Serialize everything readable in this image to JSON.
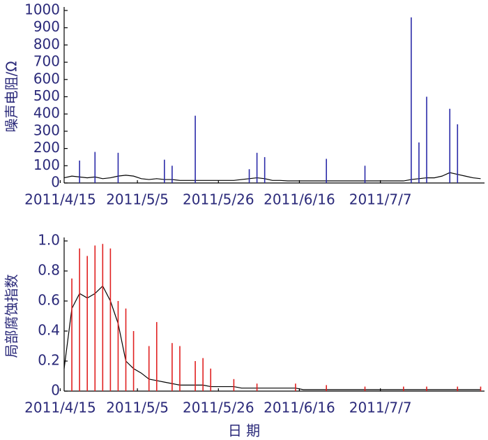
{
  "chart_data": [
    {
      "type": "line",
      "ylabel": "噪声电阻/Ω",
      "x": [
        "2011/4/16",
        "2011/4/18",
        "2011/4/20",
        "2011/4/22",
        "2011/4/24",
        "2011/4/26",
        "2011/4/28",
        "2011/4/30",
        "2011/5/2",
        "2011/5/4",
        "2011/5/6",
        "2011/5/8",
        "2011/5/10",
        "2011/5/12",
        "2011/5/14",
        "2011/5/16",
        "2011/5/18",
        "2011/5/20",
        "2011/5/22",
        "2011/5/24",
        "2011/5/26",
        "2011/5/28",
        "2011/5/30",
        "2011/6/1",
        "2011/6/3",
        "2011/6/5",
        "2011/6/7",
        "2011/6/9",
        "2011/6/11",
        "2011/6/13",
        "2011/6/15",
        "2011/6/17",
        "2011/6/19",
        "2011/6/21",
        "2011/6/23",
        "2011/6/25",
        "2011/6/27",
        "2011/6/29",
        "2011/7/1",
        "2011/7/3",
        "2011/7/5",
        "2011/7/7",
        "2011/7/9",
        "2011/7/11",
        "2011/7/13",
        "2011/7/15",
        "2011/7/17",
        "2011/7/19",
        "2011/7/21",
        "2011/7/23",
        "2011/7/25",
        "2011/7/27",
        "2011/7/29",
        "2011/7/31",
        "2011/8/2"
      ],
      "series": [
        {
          "color": "#000000",
          "style": "line",
          "values": [
            30,
            40,
            35,
            30,
            35,
            25,
            30,
            40,
            45,
            40,
            25,
            20,
            25,
            20,
            20,
            15,
            15,
            15,
            15,
            15,
            15,
            15,
            15,
            20,
            25,
            30,
            25,
            15,
            15,
            12,
            12,
            12,
            12,
            12,
            12,
            12,
            12,
            12,
            12,
            12,
            12,
            12,
            12,
            12,
            12,
            20,
            25,
            30,
            30,
            40,
            60,
            50,
            40,
            30,
            25
          ]
        },
        {
          "color": "#2a2aa8",
          "style": "stem",
          "values": [
            null,
            null,
            130,
            null,
            180,
            null,
            null,
            175,
            null,
            null,
            null,
            null,
            null,
            135,
            100,
            null,
            null,
            390,
            null,
            null,
            null,
            null,
            null,
            null,
            80,
            175,
            150,
            null,
            null,
            null,
            null,
            null,
            null,
            null,
            140,
            null,
            null,
            null,
            null,
            100,
            null,
            null,
            null,
            null,
            null,
            960,
            235,
            500,
            null,
            null,
            430,
            340,
            null,
            null,
            null
          ]
        }
      ],
      "xlim": [
        "2011/4/16",
        "2011/8/3"
      ],
      "xticks": [
        "2011/4/15",
        "2011/5/5",
        "2011/5/26",
        "2011/6/16",
        "2011/7/7"
      ],
      "ylim": [
        0,
        1000
      ],
      "yticks": [
        0,
        100,
        200,
        300,
        400,
        500,
        600,
        700,
        800,
        900,
        1000
      ]
    },
    {
      "type": "line",
      "ylabel": "局部腐蚀指数",
      "xlabel": "日 期",
      "x": [
        "2011/4/16",
        "2011/4/18",
        "2011/4/20",
        "2011/4/22",
        "2011/4/24",
        "2011/4/26",
        "2011/4/28",
        "2011/4/30",
        "2011/5/2",
        "2011/5/4",
        "2011/5/6",
        "2011/5/8",
        "2011/5/10",
        "2011/5/12",
        "2011/5/14",
        "2011/5/16",
        "2011/5/18",
        "2011/5/20",
        "2011/5/22",
        "2011/5/24",
        "2011/5/26",
        "2011/5/28",
        "2011/5/30",
        "2011/6/1",
        "2011/6/3",
        "2011/6/5",
        "2011/6/7",
        "2011/6/9",
        "2011/6/11",
        "2011/6/13",
        "2011/6/15",
        "2011/6/17",
        "2011/6/19",
        "2011/6/21",
        "2011/6/23",
        "2011/6/25",
        "2011/6/27",
        "2011/6/29",
        "2011/7/1",
        "2011/7/3",
        "2011/7/5",
        "2011/7/7",
        "2011/7/9",
        "2011/7/11",
        "2011/7/13",
        "2011/7/15",
        "2011/7/17",
        "2011/7/19",
        "2011/7/21",
        "2011/7/23",
        "2011/7/25",
        "2011/7/27",
        "2011/7/29",
        "2011/7/31",
        "2011/8/2"
      ],
      "series": [
        {
          "color": "#000000",
          "style": "line",
          "values": [
            0.15,
            0.55,
            0.65,
            0.62,
            0.65,
            0.7,
            0.6,
            0.45,
            0.2,
            0.15,
            0.12,
            0.08,
            0.07,
            0.06,
            0.05,
            0.04,
            0.04,
            0.04,
            0.04,
            0.03,
            0.03,
            0.03,
            0.03,
            0.02,
            0.02,
            0.02,
            0.02,
            0.02,
            0.02,
            0.02,
            0.02,
            0.01,
            0.01,
            0.01,
            0.01,
            0.01,
            0.01,
            0.01,
            0.01,
            0.01,
            0.01,
            0.01,
            0.01,
            0.01,
            0.01,
            0.01,
            0.01,
            0.01,
            0.01,
            0.01,
            0.01,
            0.01,
            0.01,
            0.01,
            0.01
          ]
        },
        {
          "color": "#e02020",
          "style": "stem",
          "values": [
            null,
            0.75,
            0.95,
            0.9,
            0.97,
            0.98,
            0.95,
            0.6,
            0.55,
            0.4,
            null,
            0.3,
            0.46,
            null,
            0.32,
            0.3,
            null,
            0.2,
            0.22,
            0.15,
            null,
            null,
            0.08,
            null,
            null,
            0.05,
            null,
            null,
            null,
            null,
            0.05,
            null,
            null,
            null,
            0.04,
            null,
            null,
            null,
            null,
            0.03,
            null,
            null,
            null,
            null,
            0.03,
            null,
            null,
            0.03,
            null,
            null,
            null,
            0.03,
            null,
            null,
            0.03
          ]
        }
      ],
      "xlim": [
        "2011/4/16",
        "2011/8/3"
      ],
      "xticks": [
        "2011/4/15",
        "2011/5/5",
        "2011/5/26",
        "2011/6/16",
        "2011/7/7"
      ],
      "ylim": [
        0,
        1
      ],
      "yticks": [
        0,
        0.2,
        0.4,
        0.6,
        0.8,
        {
          "value": 1,
          "label": "1.0"
        }
      ]
    }
  ]
}
